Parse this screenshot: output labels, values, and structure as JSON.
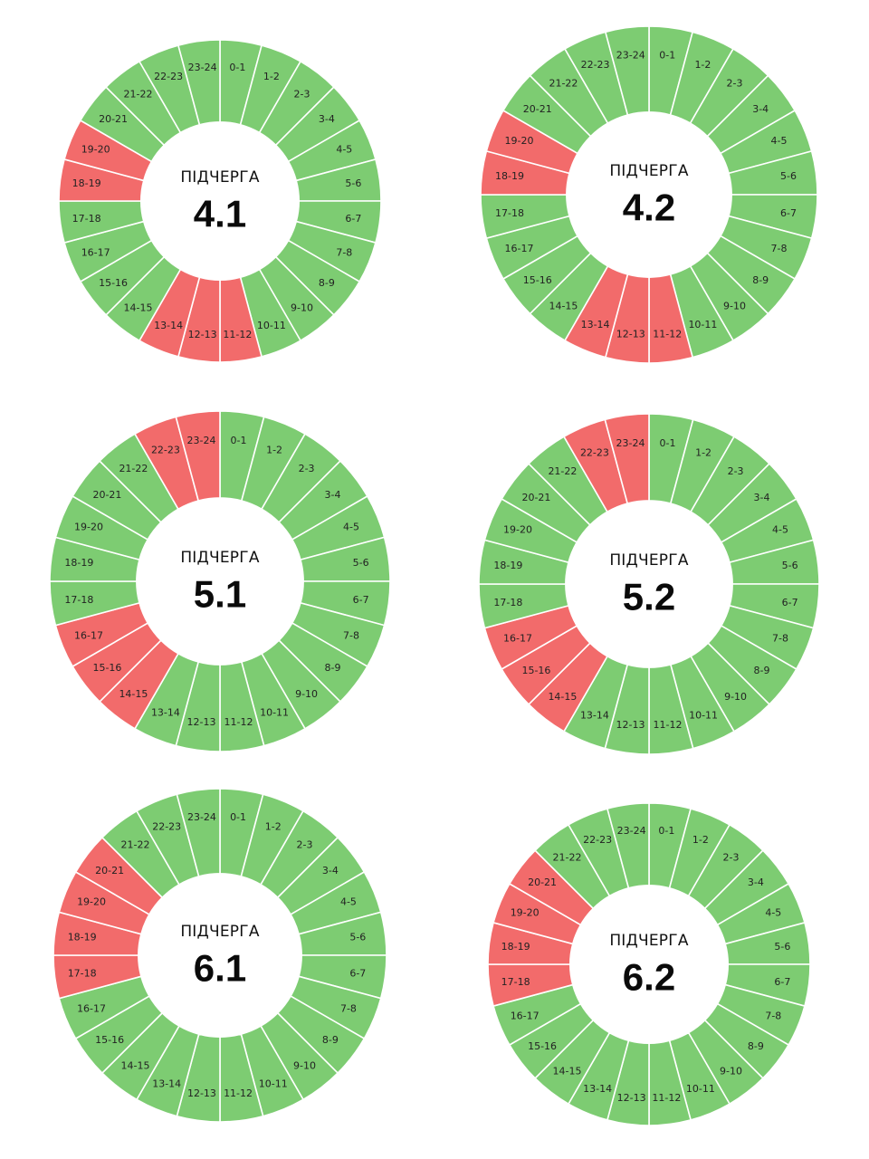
{
  "colors": {
    "on": "#7dcc72",
    "off": "#f26b6b",
    "separator": "#ffffff",
    "center": "#ffffff"
  },
  "slot_labels": [
    "0-1",
    "1-2",
    "2-3",
    "3-4",
    "4-5",
    "5-6",
    "6-7",
    "7-8",
    "8-9",
    "9-10",
    "10-11",
    "11-12",
    "12-13",
    "13-14",
    "14-15",
    "15-16",
    "16-17",
    "17-18",
    "18-19",
    "19-20",
    "20-21",
    "21-22",
    "22-23",
    "23-24"
  ],
  "chart_data": [
    {
      "type": "pie",
      "subtitle": "ПІДЧЕРГА",
      "title": "4.1",
      "outage_hours": [
        11,
        12,
        13,
        18,
        19
      ]
    },
    {
      "type": "pie",
      "subtitle": "ПІДЧЕРГА",
      "title": "4.2",
      "outage_hours": [
        11,
        12,
        13,
        18,
        19
      ]
    },
    {
      "type": "pie",
      "subtitle": "ПІДЧЕРГА",
      "title": "5.1",
      "outage_hours": [
        14,
        15,
        16,
        22,
        23
      ]
    },
    {
      "type": "pie",
      "subtitle": "ПІДЧЕРГА",
      "title": "5.2",
      "outage_hours": [
        14,
        15,
        16,
        22,
        23
      ]
    },
    {
      "type": "pie",
      "subtitle": "ПІДЧЕРГА",
      "title": "6.1",
      "outage_hours": [
        17,
        18,
        19,
        20
      ]
    },
    {
      "type": "pie",
      "subtitle": "ПІДЧЕРГА",
      "title": "6.2",
      "outage_hours": [
        17,
        18,
        19,
        20
      ]
    }
  ]
}
